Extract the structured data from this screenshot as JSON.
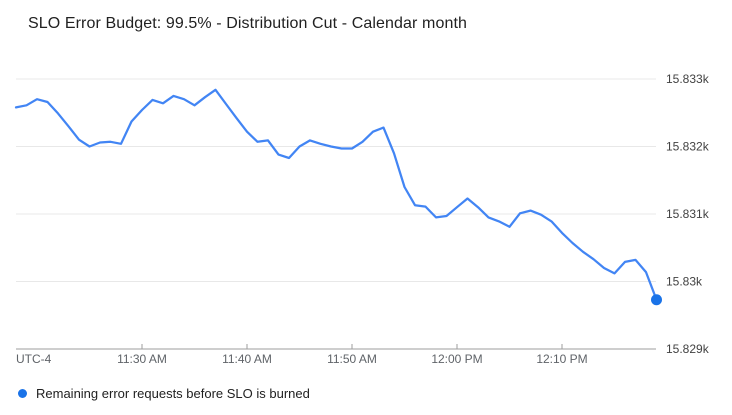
{
  "header": {
    "title": "SLO Error Budget: 99.5% - Distribution Cut - Calendar month"
  },
  "legend": {
    "label": "Remaining error requests before SLO is burned",
    "marker_color": "#1a73e8"
  },
  "colors": {
    "line": "#4285f4",
    "end_dot": "#1a73e8",
    "gridline": "#e8e8e8",
    "axis_line": "#9e9e9e",
    "tick_mark": "#9e9e9e",
    "x_tick_label": "#5f6368",
    "y_tick_label": "#424242"
  },
  "chart_data": {
    "type": "line",
    "title": "SLO Error Budget: 99.5% - Distribution Cut - Calendar month",
    "timezone_note": "UTC-4",
    "grid": true,
    "y_axis_side": "right",
    "legend_position": "bottom",
    "x_ticks": [
      {
        "label": "11:30 AM",
        "index": 12
      },
      {
        "label": "11:40 AM",
        "index": 22
      },
      {
        "label": "11:50 AM",
        "index": 32
      },
      {
        "label": "12:00 PM",
        "index": 42
      },
      {
        "label": "12:10 PM",
        "index": 52
      }
    ],
    "y_ticks": [
      {
        "label": "15.833k",
        "value": 15833
      },
      {
        "label": "15.832k",
        "value": 15832
      },
      {
        "label": "15.831k",
        "value": 15831
      },
      {
        "label": "15.83k",
        "value": 15830
      },
      {
        "label": "15.829k",
        "value": 15829
      }
    ],
    "y_range": [
      15829,
      15833.2
    ],
    "series": [
      {
        "name": "Remaining error requests before SLO is burned",
        "end_marker": true,
        "times": [
          "11:18 AM",
          "11:19 AM",
          "11:20 AM",
          "11:21 AM",
          "11:22 AM",
          "11:23 AM",
          "11:24 AM",
          "11:25 AM",
          "11:26 AM",
          "11:27 AM",
          "11:28 AM",
          "11:29 AM",
          "11:30 AM",
          "11:31 AM",
          "11:32 AM",
          "11:33 AM",
          "11:34 AM",
          "11:35 AM",
          "11:36 AM",
          "11:37 AM",
          "11:38 AM",
          "11:39 AM",
          "11:40 AM",
          "11:41 AM",
          "11:42 AM",
          "11:43 AM",
          "11:44 AM",
          "11:45 AM",
          "11:46 AM",
          "11:47 AM",
          "11:48 AM",
          "11:49 AM",
          "11:50 AM",
          "11:51 AM",
          "11:52 AM",
          "11:53 AM",
          "11:54 AM",
          "11:55 AM",
          "11:56 AM",
          "11:57 AM",
          "11:58 AM",
          "11:59 AM",
          "12:00 PM",
          "12:01 PM",
          "12:02 PM",
          "12:03 PM",
          "12:04 PM",
          "12:05 PM",
          "12:06 PM",
          "12:07 PM",
          "12:08 PM",
          "12:09 PM",
          "12:10 PM",
          "12:11 PM",
          "12:12 PM",
          "12:13 PM",
          "12:14 PM",
          "12:15 PM",
          "12:16 PM",
          "12:17 PM",
          "12:18 PM",
          "12:19 PM"
        ],
        "values": [
          15832.58,
          15832.61,
          15832.7,
          15832.66,
          15832.49,
          15832.3,
          15832.1,
          15832.0,
          15832.06,
          15832.07,
          15832.04,
          15832.37,
          15832.54,
          15832.69,
          15832.64,
          15832.75,
          15832.7,
          15832.61,
          15832.73,
          15832.84,
          15832.63,
          15832.42,
          15832.22,
          15832.07,
          15832.09,
          15831.88,
          15831.83,
          15832.0,
          15832.09,
          15832.04,
          15832.0,
          15831.97,
          15831.97,
          15832.07,
          15832.22,
          15832.28,
          15831.9,
          15831.4,
          15831.13,
          15831.11,
          15830.95,
          15830.97,
          15831.1,
          15831.23,
          15831.1,
          15830.95,
          15830.89,
          15830.81,
          15831.01,
          15831.05,
          15830.99,
          15830.89,
          15830.72,
          15830.57,
          15830.44,
          15830.33,
          15830.2,
          15830.12,
          15830.29,
          15830.32,
          15830.14,
          15829.73
        ]
      }
    ]
  }
}
